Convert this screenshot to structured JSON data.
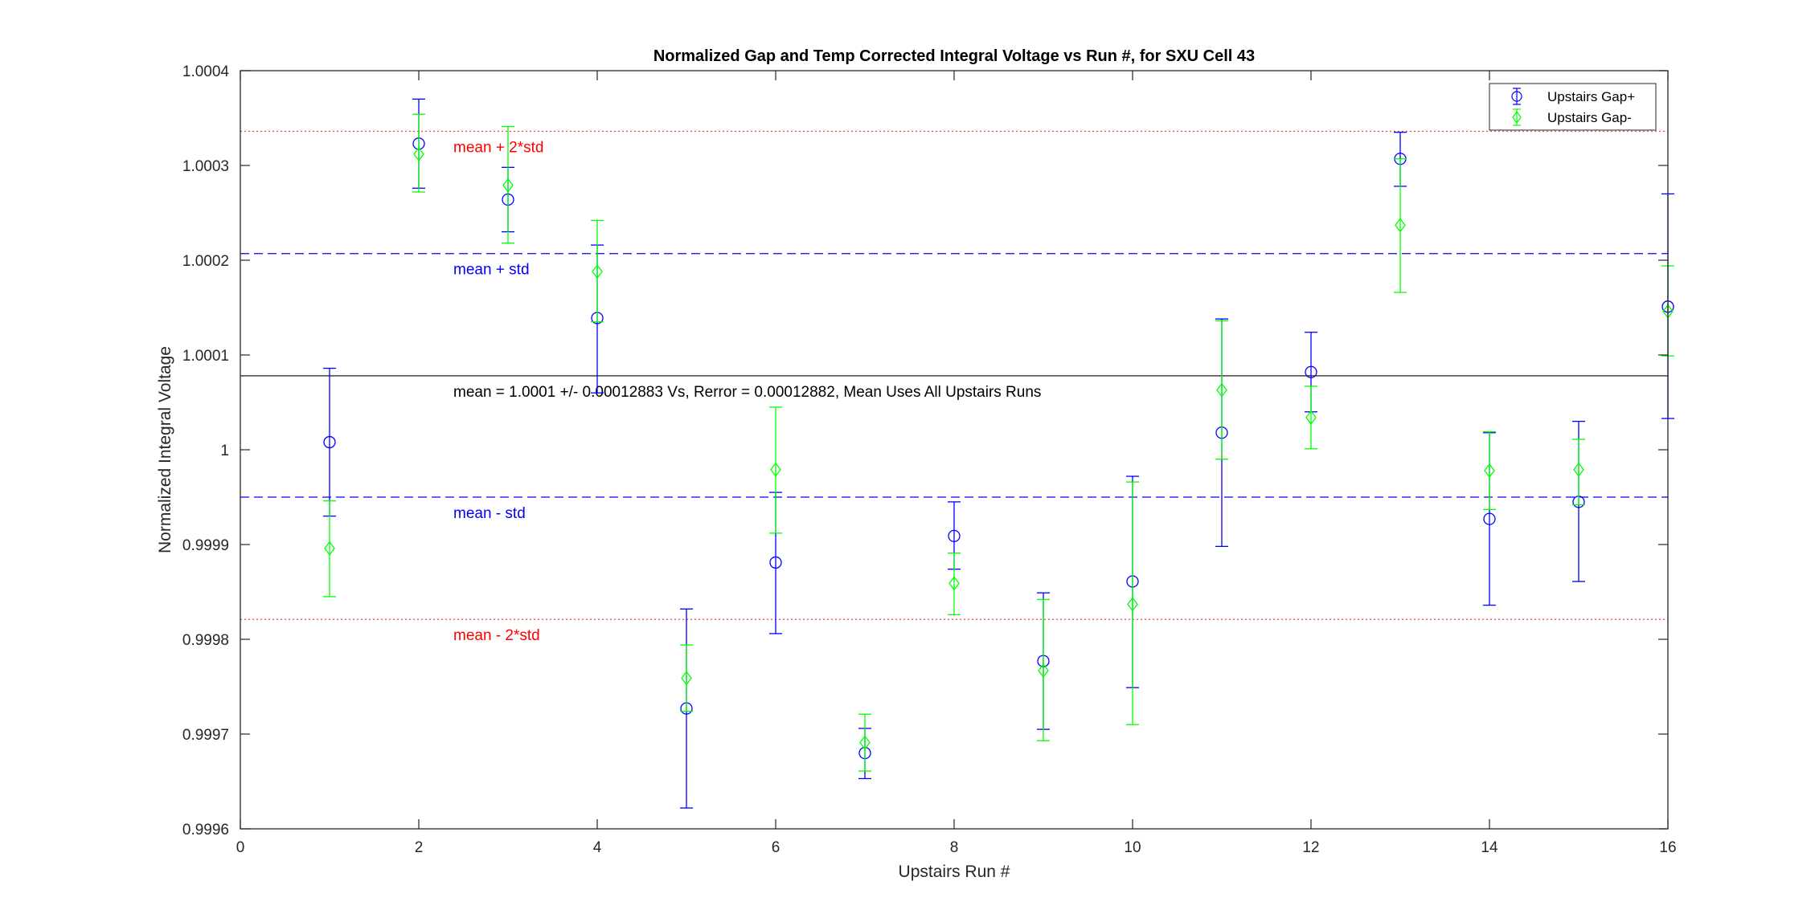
{
  "chart_data": {
    "type": "scatter",
    "title": "Normalized Gap and Temp Corrected Integral Voltage vs Run #, for SXU Cell 43",
    "xlabel": "Upstairs Run #",
    "ylabel": "Normalized Integral Voltage",
    "xlim": [
      0,
      16
    ],
    "ylim": [
      0.9996,
      1.0004
    ],
    "x_ticks": [
      0,
      2,
      4,
      6,
      8,
      10,
      12,
      14,
      16
    ],
    "y_ticks": [
      0.9996,
      0.9997,
      0.9998,
      0.9999,
      1.0,
      1.0001,
      1.0002,
      1.0003,
      1.0004
    ],
    "x_tick_labels": [
      "0",
      "2",
      "4",
      "6",
      "8",
      "10",
      "12",
      "14",
      "16"
    ],
    "y_tick_labels": [
      "0.9996",
      "0.9997",
      "0.9998",
      "0.9999",
      "1",
      "1.0001",
      "1.0002",
      "1.0003",
      "1.0004"
    ],
    "grid": false,
    "legend_position": "top-right",
    "series": [
      {
        "name": "Upstairs Gap+",
        "color": "#0000ff",
        "marker": "circle",
        "x": [
          1,
          2,
          3,
          4,
          5,
          6,
          7,
          8,
          9,
          10,
          11,
          12,
          13,
          14,
          15,
          16
        ],
        "y": [
          1.000008,
          1.000323,
          1.000264,
          1.000139,
          0.999727,
          0.999881,
          0.99968,
          0.999909,
          0.999777,
          0.999861,
          1.000018,
          1.000082,
          1.000307,
          0.999927,
          0.999945,
          1.000151
        ],
        "err_low": [
          0.99993,
          1.000276,
          1.00023,
          1.00006,
          0.999622,
          0.999806,
          0.999653,
          0.999874,
          0.999705,
          0.999749,
          0.999898,
          1.00004,
          1.000278,
          0.999836,
          0.999861,
          1.000033
        ],
        "err_high": [
          1.000086,
          1.00037,
          1.000298,
          1.000216,
          0.999832,
          0.999955,
          0.999706,
          0.999945,
          0.999849,
          0.999972,
          1.000138,
          1.000124,
          1.000335,
          1.000018,
          1.00003,
          1.00027
        ]
      },
      {
        "name": "Upstairs Gap-",
        "color": "#00ff00",
        "marker": "diamond",
        "x": [
          1,
          2,
          3,
          4,
          5,
          6,
          7,
          8,
          9,
          10,
          11,
          12,
          13,
          14,
          15,
          16
        ],
        "y": [
          0.999896,
          1.000312,
          1.000279,
          1.000188,
          0.999759,
          0.999979,
          0.999691,
          0.999859,
          0.999767,
          0.999837,
          1.000063,
          1.000034,
          1.000237,
          0.999978,
          0.999979,
          1.000146
        ],
        "err_low": [
          0.999845,
          1.000272,
          1.000218,
          1.000135,
          0.999724,
          0.999912,
          0.999661,
          0.999826,
          0.999693,
          0.99971,
          0.99999,
          1.000001,
          1.000166,
          0.999937,
          0.999942,
          1.000099
        ],
        "err_high": [
          0.999946,
          1.000354,
          1.000341,
          1.000242,
          0.999794,
          1.000045,
          0.999721,
          0.999891,
          0.999842,
          0.999966,
          1.000136,
          1.000067,
          1.000307,
          1.000019,
          1.000011,
          1.000194
        ]
      }
    ],
    "reference_lines": [
      {
        "label": "mean + 2*std",
        "y": 1.000336,
        "color": "#ff0000",
        "style": "dotted"
      },
      {
        "label": "mean + std",
        "y": 1.000207,
        "color": "#0000ff",
        "style": "dashed"
      },
      {
        "label": "mean = 1.0001 +/- 0.00012883 Vs, Rerror = 0.00012882, Mean Uses All Upstairs Runs",
        "y": 1.000078,
        "color": "#000000",
        "style": "solid"
      },
      {
        "label": "mean - std",
        "y": 0.99995,
        "color": "#0000ff",
        "style": "dashed"
      },
      {
        "label": "mean - 2*std",
        "y": 0.999821,
        "color": "#ff0000",
        "style": "dotted"
      }
    ]
  }
}
